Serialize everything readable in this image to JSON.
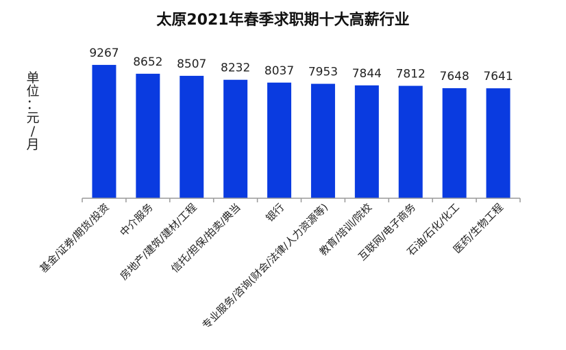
{
  "chart_data": {
    "type": "bar",
    "title": "太原2021年春季求职期十大高薪行业",
    "ylabel": "单位：元/月",
    "categories": [
      "基金/证券/期货/投资",
      "中介服务",
      "房地产/建筑/建材/工程",
      "信托/担保/拍卖/典当",
      "银行",
      "专业服务/咨询(财会/法律/人力资源等)",
      "教育/培训/院校",
      "互联网/电子商务",
      "石油/石化/化工",
      "医药/生物工程"
    ],
    "values": [
      9267,
      8652,
      8507,
      8232,
      8037,
      7953,
      7844,
      7812,
      7648,
      7641
    ],
    "ylim": [
      0,
      10000
    ],
    "grid": false,
    "legend": "none",
    "bar_color": "#0a3be0",
    "axis_color": "#999999"
  }
}
